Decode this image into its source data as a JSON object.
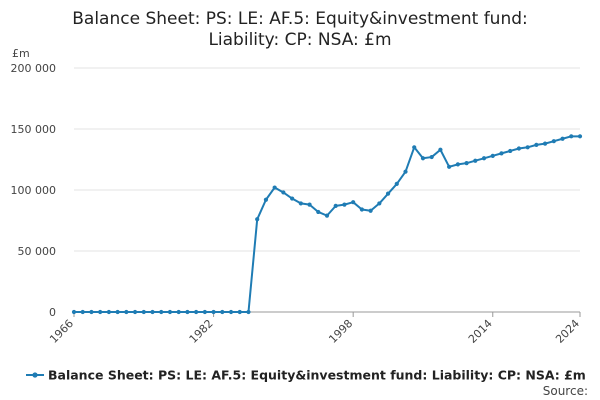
{
  "chart_data": {
    "type": "line",
    "title_lines": [
      "Balance Sheet: PS: LE: AF.5: Equity&investment fund:",
      "Liability: CP: NSA: £m"
    ],
    "y_unit": "£m",
    "ylim": [
      0,
      200000
    ],
    "y_ticks": [
      0,
      50000,
      100000,
      150000,
      200000
    ],
    "y_tick_labels": [
      "0",
      "50 000",
      "100 000",
      "150 000",
      "200 000"
    ],
    "xlim": [
      1966,
      2024
    ],
    "x_ticks": [
      1966,
      1982,
      1998,
      2014,
      2024
    ],
    "x_tick_labels": [
      "1966",
      "1982",
      "1998",
      "2014",
      "2024"
    ],
    "grid": "horizontal",
    "legend_position": "bottom",
    "series": [
      {
        "name": "Balance Sheet: PS: LE: AF.5: Equity&investment fund: Liability: CP: NSA: £m",
        "color": "#1f7cb4",
        "x": [
          1966,
          1967,
          1968,
          1969,
          1970,
          1971,
          1972,
          1973,
          1974,
          1975,
          1976,
          1977,
          1978,
          1979,
          1980,
          1981,
          1982,
          1983,
          1984,
          1985,
          1986,
          1987,
          1988,
          1989,
          1990,
          1991,
          1992,
          1993,
          1994,
          1995,
          1996,
          1997,
          1998,
          1999,
          2000,
          2001,
          2002,
          2003,
          2004,
          2005,
          2006,
          2007,
          2008,
          2009,
          2010,
          2011,
          2012,
          2013,
          2014,
          2015,
          2016,
          2017,
          2018,
          2019,
          2020,
          2021,
          2022,
          2023,
          2024
        ],
        "values": [
          0,
          0,
          0,
          0,
          0,
          0,
          0,
          0,
          0,
          0,
          0,
          0,
          0,
          0,
          0,
          0,
          0,
          0,
          0,
          0,
          0,
          76000,
          92000,
          102000,
          98000,
          93000,
          89000,
          88000,
          82000,
          79000,
          87000,
          88000,
          90000,
          84000,
          83000,
          89000,
          97000,
          105000,
          115000,
          135000,
          126000,
          127000,
          133000,
          119000,
          121000,
          122000,
          124000,
          126000,
          128000,
          130000,
          132000,
          134000,
          135000,
          137000,
          138000,
          140000,
          142000,
          144000,
          144000
        ]
      }
    ],
    "source_label": "Source:"
  }
}
